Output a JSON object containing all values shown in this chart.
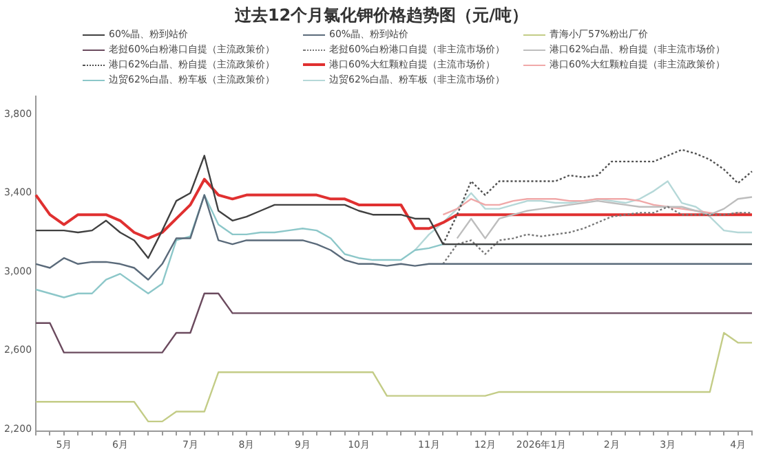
{
  "chart_data": {
    "type": "line",
    "title": "过去12个月氯化钾价格趋势图（元/吨）",
    "categories": [
      null,
      null,
      "5月",
      null,
      null,
      null,
      "6月",
      null,
      null,
      null,
      null,
      "7月",
      null,
      null,
      null,
      "8月",
      null,
      null,
      null,
      "9月",
      null,
      null,
      null,
      "10月",
      null,
      null,
      null,
      null,
      "11月",
      null,
      null,
      null,
      "12月",
      null,
      null,
      null,
      "2026年1月",
      null,
      null,
      null,
      null,
      "2月",
      null,
      null,
      null,
      "3月",
      null,
      null,
      null,
      null,
      "4月",
      null
    ],
    "ylim": [
      2200,
      3900
    ],
    "yticks": [
      {
        "value": 2200,
        "label": "2,200"
      },
      {
        "value": 2600,
        "label": "2,600"
      },
      {
        "value": 3000,
        "label": "3,000"
      },
      {
        "value": 3400,
        "label": "3,400"
      },
      {
        "value": 3800,
        "label": "3,800"
      }
    ],
    "grid": false,
    "legend": "top",
    "marker": "none",
    "series": [
      {
        "name": "60%晶、粉到站价",
        "color": "#404040",
        "values": [
          3220,
          3220,
          3220,
          3210,
          3220,
          3270,
          3210,
          3170,
          3080,
          3220,
          3370,
          3410,
          3600,
          3320,
          3270,
          3290,
          3320,
          3350,
          3350,
          3350,
          3350,
          3350,
          3350,
          3320,
          3300,
          3300,
          3300,
          3280,
          3280,
          3150,
          3150,
          3150,
          3150,
          3150,
          3150,
          3150,
          3150,
          3150,
          3150,
          3150,
          3150,
          3150,
          3150,
          3150,
          3150,
          3150,
          3150,
          3150,
          3150,
          3150,
          3150,
          3150
        ]
      },
      {
        "name": "60%晶、粉到站价",
        "color": "#5a6a7a",
        "values": [
          3050,
          3030,
          3080,
          3050,
          3060,
          3060,
          3050,
          3030,
          2970,
          3050,
          3180,
          3180,
          3400,
          3170,
          3150,
          3170,
          3170,
          3170,
          3170,
          3170,
          3150,
          3120,
          3070,
          3050,
          3050,
          3040,
          3050,
          3040,
          3050,
          3050,
          3050,
          3050,
          3050,
          3050,
          3050,
          3050,
          3050,
          3050,
          3050,
          3050,
          3050,
          3050,
          3050,
          3050,
          3050,
          3050,
          3050,
          3050,
          3050,
          3050,
          3050,
          3050
        ]
      },
      {
        "name": "青海小厂57%粉出厂价",
        "color": "#c3cc86",
        "values": [
          2350,
          2350,
          2350,
          2350,
          2350,
          2350,
          2350,
          2350,
          2250,
          2250,
          2300,
          2300,
          2300,
          2500,
          2500,
          2500,
          2500,
          2500,
          2500,
          2500,
          2500,
          2500,
          2500,
          2500,
          2500,
          2380,
          2380,
          2380,
          2380,
          2380,
          2380,
          2380,
          2380,
          2400,
          2400,
          2400,
          2400,
          2400,
          2400,
          2400,
          2400,
          2400,
          2400,
          2400,
          2400,
          2400,
          2400,
          2400,
          2400,
          2700,
          2650,
          2650
        ]
      },
      {
        "name": "老挝60%白粉港口自提（主流政策价）",
        "color": "#6b4a5e",
        "values": [
          2750,
          2750,
          2600,
          2600,
          2600,
          2600,
          2600,
          2600,
          2600,
          2600,
          2700,
          2700,
          2900,
          2900,
          2800,
          2800,
          2800,
          2800,
          2800,
          2800,
          2800,
          2800,
          2800,
          2800,
          2800,
          2800,
          2800,
          2800,
          2800,
          2800,
          2800,
          2800,
          2800,
          2800,
          2800,
          2800,
          2800,
          2800,
          2800,
          2800,
          2800,
          2800,
          2800,
          2800,
          2800,
          2800,
          2800,
          2800,
          2800,
          2800,
          2800,
          2800
        ]
      },
      {
        "name": "老挝60%白粉港口自提（非主流市场价）",
        "color": "#777777",
        "line_style": "dotted",
        "values": [
          null,
          null,
          null,
          null,
          null,
          null,
          null,
          null,
          null,
          null,
          null,
          null,
          null,
          null,
          null,
          null,
          null,
          null,
          null,
          null,
          null,
          null,
          null,
          null,
          null,
          null,
          null,
          null,
          null,
          3050,
          3150,
          3170,
          3100,
          3170,
          3180,
          3200,
          3190,
          3200,
          3210,
          3230,
          3260,
          3290,
          3300,
          3310,
          3310,
          3340,
          3300,
          3300,
          3300,
          3300,
          3310,
          3310
        ]
      },
      {
        "name": "港口62%白晶、粉自提（非主流市场价）",
        "color": "#bdbdbd",
        "values": [
          null,
          null,
          null,
          null,
          null,
          null,
          null,
          null,
          null,
          null,
          null,
          null,
          null,
          null,
          null,
          null,
          null,
          null,
          null,
          null,
          null,
          null,
          null,
          null,
          null,
          null,
          null,
          null,
          null,
          null,
          3180,
          3280,
          3180,
          3280,
          3300,
          3320,
          3330,
          3340,
          3350,
          3360,
          3370,
          3360,
          3350,
          3340,
          3340,
          3340,
          3340,
          3320,
          3300,
          3330,
          3380,
          3390
        ]
      },
      {
        "name": "港口62%白晶、粉自提（主流政策价）",
        "color": "#505050",
        "line_style": "dotted",
        "values": [
          null,
          null,
          null,
          null,
          null,
          null,
          null,
          null,
          null,
          null,
          null,
          null,
          null,
          null,
          null,
          null,
          null,
          null,
          null,
          null,
          null,
          null,
          null,
          null,
          null,
          null,
          null,
          null,
          null,
          3150,
          3300,
          3470,
          3400,
          3470,
          3470,
          3470,
          3470,
          3470,
          3500,
          3490,
          3500,
          3570,
          3570,
          3570,
          3570,
          3600,
          3630,
          3610,
          3580,
          3530,
          3460,
          3520
        ]
      },
      {
        "name": "港口60%大红颗粒自提（主流市场价）",
        "color": "#e03030",
        "values": [
          3400,
          3300,
          3250,
          3300,
          3300,
          3300,
          3270,
          3210,
          3180,
          3210,
          3280,
          3350,
          3480,
          3400,
          3380,
          3400,
          3400,
          3400,
          3400,
          3400,
          3400,
          3380,
          3380,
          3350,
          3350,
          3350,
          3350,
          3230,
          3230,
          3260,
          3300,
          3300,
          3300,
          3300,
          3300,
          3300,
          3300,
          3300,
          3300,
          3300,
          3300,
          3300,
          3300,
          3300,
          3300,
          3300,
          3300,
          3300,
          3300,
          3300,
          3300,
          3300
        ]
      },
      {
        "name": "港口60%大红颗粒自提（非主流政策价）",
        "color": "#f0a8a8",
        "values": [
          null,
          null,
          null,
          null,
          null,
          null,
          null,
          null,
          null,
          null,
          null,
          null,
          null,
          null,
          null,
          null,
          null,
          null,
          null,
          null,
          null,
          null,
          null,
          null,
          null,
          null,
          null,
          null,
          null,
          3300,
          3330,
          3380,
          3350,
          3350,
          3370,
          3380,
          3380,
          3380,
          3370,
          3370,
          3380,
          3380,
          3380,
          3370,
          3350,
          3340,
          3330,
          3320,
          3310,
          3300,
          3310,
          3300
        ]
      },
      {
        "name": "边贸62%白晶、粉车板（主流政策价）",
        "color": "#8cc7c9",
        "values": [
          2920,
          2900,
          2880,
          2900,
          2900,
          2970,
          3000,
          2950,
          2900,
          2950,
          3170,
          3190,
          3400,
          3250,
          3200,
          3200,
          3210,
          3210,
          3220,
          3230,
          3220,
          3180,
          3100,
          3080,
          3070,
          3070,
          3070,
          3120,
          3130,
          3150,
          3150,
          3150,
          3150,
          3150,
          3150,
          3150,
          3150,
          3150,
          3150,
          3150,
          3150,
          3150,
          3150,
          3150,
          3150,
          3150,
          3150,
          3150,
          3150,
          3150,
          3150,
          3150
        ]
      },
      {
        "name": "边贸62%白晶、粉车板（非主流市场价）",
        "color": "#b5d8d8",
        "values": [
          null,
          null,
          null,
          null,
          null,
          null,
          null,
          null,
          null,
          null,
          null,
          null,
          null,
          null,
          null,
          null,
          null,
          null,
          null,
          null,
          null,
          null,
          null,
          null,
          null,
          null,
          null,
          3120,
          3200,
          3260,
          3330,
          3410,
          3330,
          3330,
          3350,
          3370,
          3370,
          3360,
          3360,
          3370,
          3380,
          3370,
          3360,
          3380,
          3420,
          3470,
          3360,
          3340,
          3290,
          3220,
          3210,
          3210
        ]
      }
    ]
  }
}
